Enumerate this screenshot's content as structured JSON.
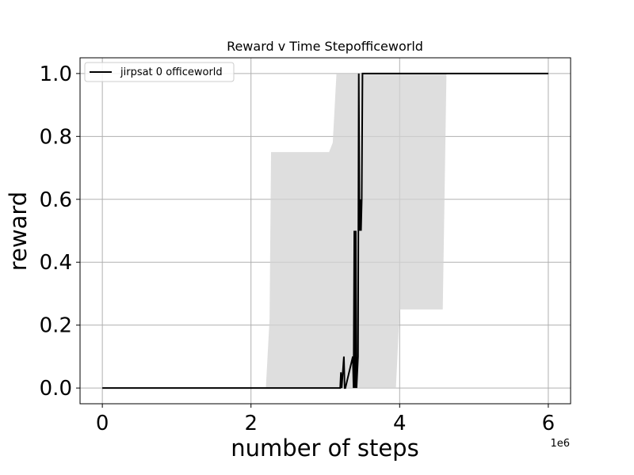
{
  "chart_data": {
    "type": "line",
    "title": "Reward v Time Stepofficeworld",
    "xlabel": "number of steps",
    "ylabel": "reward",
    "x_offset_label": "1e6",
    "xlim": [
      -0.3,
      6.3
    ],
    "ylim": [
      -0.05,
      1.05
    ],
    "xticks": [
      0,
      2,
      4,
      6
    ],
    "xtick_labels": [
      "0",
      "2",
      "4",
      "6"
    ],
    "yticks": [
      0.0,
      0.2,
      0.4,
      0.6,
      0.8,
      1.0
    ],
    "ytick_labels": [
      "0.0",
      "0.2",
      "0.4",
      "0.6",
      "0.8",
      "1.0"
    ],
    "grid": true,
    "legend_position": "top-left",
    "series": [
      {
        "name": "jirpsat 0 officeworld",
        "color": "#000000",
        "x": [
          0,
          3.2,
          3.21,
          3.22,
          3.25,
          3.26,
          3.27,
          3.37,
          3.38,
          3.39,
          3.4,
          3.41,
          3.42,
          3.44,
          3.45,
          3.46,
          3.47,
          3.48,
          3.49,
          3.5,
          3.51,
          3.52,
          6.0
        ],
        "y": [
          0,
          0,
          0.05,
          0,
          0.1,
          0,
          0,
          0.1,
          0,
          0.5,
          0,
          0.5,
          0,
          0.1,
          1.0,
          0.5,
          0.6,
          0.5,
          0.6,
          1.0,
          1.0,
          1.0,
          1.0
        ]
      }
    ],
    "band": {
      "color": "#d3d3d3",
      "x": [
        2.2,
        2.25,
        2.27,
        3.05,
        3.1,
        3.15,
        3.2,
        3.95,
        4.0,
        4.55,
        4.58,
        4.63,
        6.0
      ],
      "upper": [
        0,
        0.22,
        0.75,
        0.75,
        0.78,
        1.0,
        1.0,
        1.0,
        1.0,
        1.0,
        1.0,
        1.0,
        1.0
      ],
      "lower": [
        0,
        0,
        0,
        0,
        0,
        0,
        0,
        0,
        0.25,
        0.25,
        0.25,
        1.0,
        1.0
      ]
    }
  }
}
